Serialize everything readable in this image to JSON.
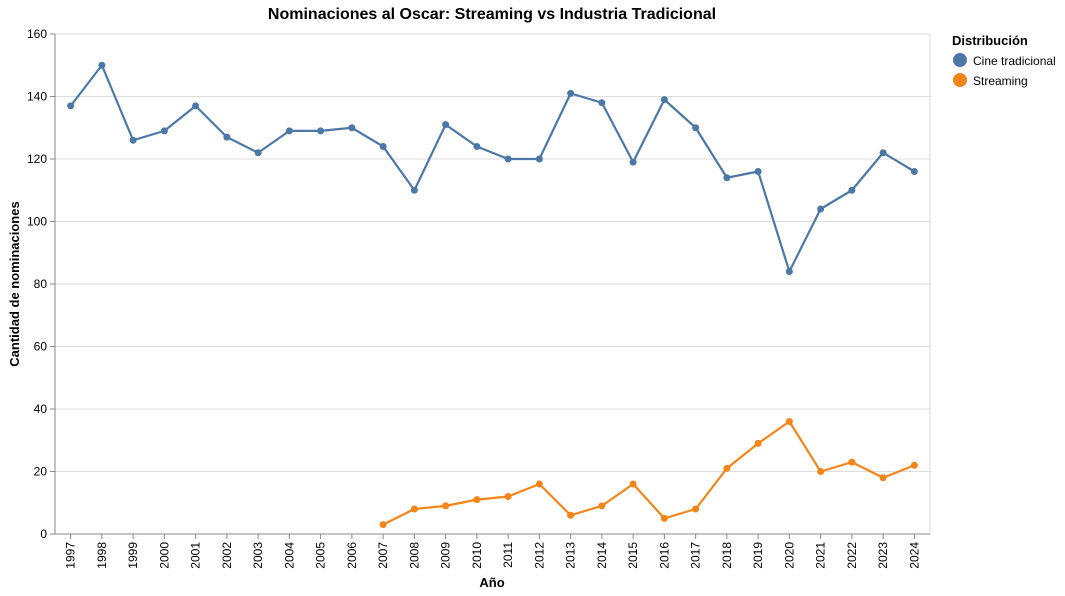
{
  "chart_data": {
    "type": "line",
    "title": "Nominaciones al Oscar: Streaming vs Industria Tradicional",
    "xlabel": "Año",
    "ylabel": "Cantidad de nominaciones",
    "ylim": [
      0,
      160
    ],
    "yticks": [
      0,
      20,
      40,
      60,
      80,
      100,
      120,
      140,
      160
    ],
    "x": [
      "1997",
      "1998",
      "1999",
      "2000",
      "2001",
      "2002",
      "2003",
      "2004",
      "2005",
      "2006",
      "2007",
      "2008",
      "2009",
      "2010",
      "2011",
      "2012",
      "2013",
      "2014",
      "2015",
      "2016",
      "2017",
      "2018",
      "2019",
      "2020",
      "2021",
      "2022",
      "2023",
      "2024"
    ],
    "grid": true,
    "legend": {
      "title": "Distribución",
      "position": "top-right"
    },
    "series": [
      {
        "name": "Cine tradicional",
        "color": "#4c78a8",
        "values": [
          137,
          150,
          126,
          129,
          137,
          127,
          122,
          129,
          129,
          130,
          124,
          110,
          131,
          124,
          120,
          120,
          141,
          138,
          119,
          139,
          130,
          114,
          116,
          84,
          104,
          110,
          122,
          116
        ]
      },
      {
        "name": "Streaming",
        "color": "#f58518",
        "values": [
          null,
          null,
          null,
          null,
          null,
          null,
          null,
          null,
          null,
          null,
          3,
          8,
          9,
          11,
          12,
          16,
          6,
          9,
          16,
          5,
          8,
          21,
          29,
          36,
          20,
          23,
          18,
          22
        ]
      }
    ]
  }
}
